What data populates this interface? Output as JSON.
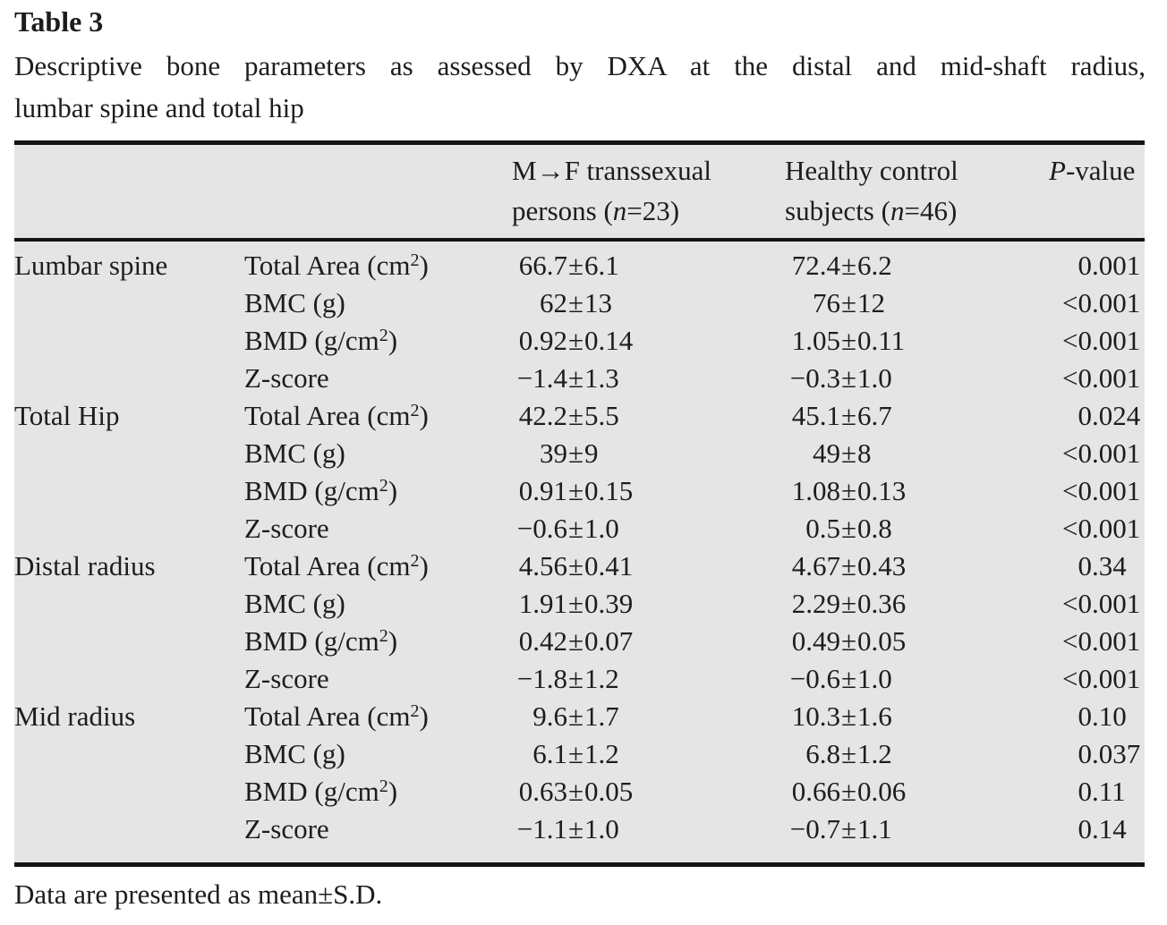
{
  "page": {
    "title": "Table 3",
    "caption_line1": "Descriptive bone parameters as assessed by DXA at the distal and mid-shaft radius,",
    "caption_line2": "lumbar spine and total hip",
    "footnote": "Data are presented as mean±S.D."
  },
  "colors": {
    "table_background": "#e5e5e6",
    "rule": "#141414",
    "text": "#1d1d1d"
  },
  "table": {
    "plus_minus": "±",
    "header": {
      "group1": {
        "line1": "M→F transsexual",
        "line2_pre": "persons (",
        "n_italic": "n",
        "eq": "=",
        "count": "23",
        "close": ")"
      },
      "group2": {
        "line1": "Healthy control",
        "line2_pre": "subjects (",
        "n_italic": "n",
        "eq": "=",
        "count": "46",
        "close": ")"
      },
      "pvalue": {
        "p_italic": "P",
        "rest": "-value"
      }
    },
    "sections": [
      {
        "group": "Lumbar spine",
        "rows": [
          {
            "param_pre": "Total Area (cm",
            "param_sup": "2",
            "param_post": ")",
            "g1_mean": "66.7",
            "g1_sd": "6.1",
            "g2_mean": "72.4",
            "g2_sd": "6.2",
            "p_int": "0",
            "p_frac": ".001"
          },
          {
            "param_pre": "BMC (g)",
            "g1_mean": "62",
            "g1_sd": "13",
            "g2_mean": "76",
            "g2_sd": "12",
            "p_int": "<0",
            "p_frac": ".001"
          },
          {
            "param_pre": "BMD (g/cm",
            "param_sup": "2",
            "param_post": ")",
            "g1_mean": "0.92",
            "g1_sd": "0.14",
            "g2_mean": "1.05",
            "g2_sd": "0.11",
            "p_int": "<0",
            "p_frac": ".001"
          },
          {
            "param_pre": "Z-score",
            "g1_mean": "−1.4",
            "g1_sd": "1.3",
            "g2_mean": "−0.3",
            "g2_sd": "1.0",
            "p_int": "<0",
            "p_frac": ".001"
          }
        ]
      },
      {
        "group": "Total Hip",
        "rows": [
          {
            "param_pre": "Total Area (cm",
            "param_sup": "2",
            "param_post": ")",
            "g1_mean": "42.2",
            "g1_sd": "5.5",
            "g2_mean": "45.1",
            "g2_sd": "6.7",
            "p_int": "0",
            "p_frac": ".024"
          },
          {
            "param_pre": "BMC (g)",
            "g1_mean": "39",
            "g1_sd": "9",
            "g2_mean": "49",
            "g2_sd": "8",
            "p_int": "<0",
            "p_frac": ".001"
          },
          {
            "param_pre": "BMD (g/cm",
            "param_sup": "2",
            "param_post": ")",
            "g1_mean": "0.91",
            "g1_sd": "0.15",
            "g2_mean": "1.08",
            "g2_sd": "0.13",
            "p_int": "<0",
            "p_frac": ".001"
          },
          {
            "param_pre": "Z-score",
            "g1_mean": "−0.6",
            "g1_sd": "1.0",
            "g2_mean": "0.5",
            "g2_sd": "0.8",
            "p_int": "<0",
            "p_frac": ".001"
          }
        ]
      },
      {
        "group": "Distal radius",
        "rows": [
          {
            "param_pre": "Total Area (cm",
            "param_sup": "2",
            "param_post": ")",
            "g1_mean": "4.56",
            "g1_sd": "0.41",
            "g2_mean": "4.67",
            "g2_sd": "0.43",
            "p_int": "0",
            "p_frac": ".34"
          },
          {
            "param_pre": "BMC (g)",
            "g1_mean": "1.91",
            "g1_sd": "0.39",
            "g2_mean": "2.29",
            "g2_sd": "0.36",
            "p_int": "<0",
            "p_frac": ".001"
          },
          {
            "param_pre": "BMD (g/cm",
            "param_sup": "2",
            "param_post": ")",
            "g1_mean": "0.42",
            "g1_sd": "0.07",
            "g2_mean": "0.49",
            "g2_sd": "0.05",
            "p_int": "<0",
            "p_frac": ".001"
          },
          {
            "param_pre": "Z-score",
            "g1_mean": "−1.8",
            "g1_sd": "1.2",
            "g2_mean": "−0.6",
            "g2_sd": "1.0",
            "p_int": "<0",
            "p_frac": ".001"
          }
        ]
      },
      {
        "group": "Mid radius",
        "rows": [
          {
            "param_pre": "Total Area (cm",
            "param_sup": "2",
            "param_post": ")",
            "g1_mean": "9.6",
            "g1_sd": "1.7",
            "g2_mean": "10.3",
            "g2_sd": "1.6",
            "p_int": "0",
            "p_frac": ".10"
          },
          {
            "param_pre": "BMC (g)",
            "g1_mean": "6.1",
            "g1_sd": "1.2",
            "g2_mean": "6.8",
            "g2_sd": "1.2",
            "p_int": "0",
            "p_frac": ".037"
          },
          {
            "param_pre": "BMD (g/cm",
            "param_sup": "2",
            "param_post": ")",
            "g1_mean": "0.63",
            "g1_sd": "0.05",
            "g2_mean": "0.66",
            "g2_sd": "0.06",
            "p_int": "0",
            "p_frac": ".11"
          },
          {
            "param_pre": "Z-score",
            "g1_mean": "−1.1",
            "g1_sd": "1.0",
            "g2_mean": "−0.7",
            "g2_sd": "1.1",
            "p_int": "0",
            "p_frac": ".14"
          }
        ]
      }
    ]
  }
}
